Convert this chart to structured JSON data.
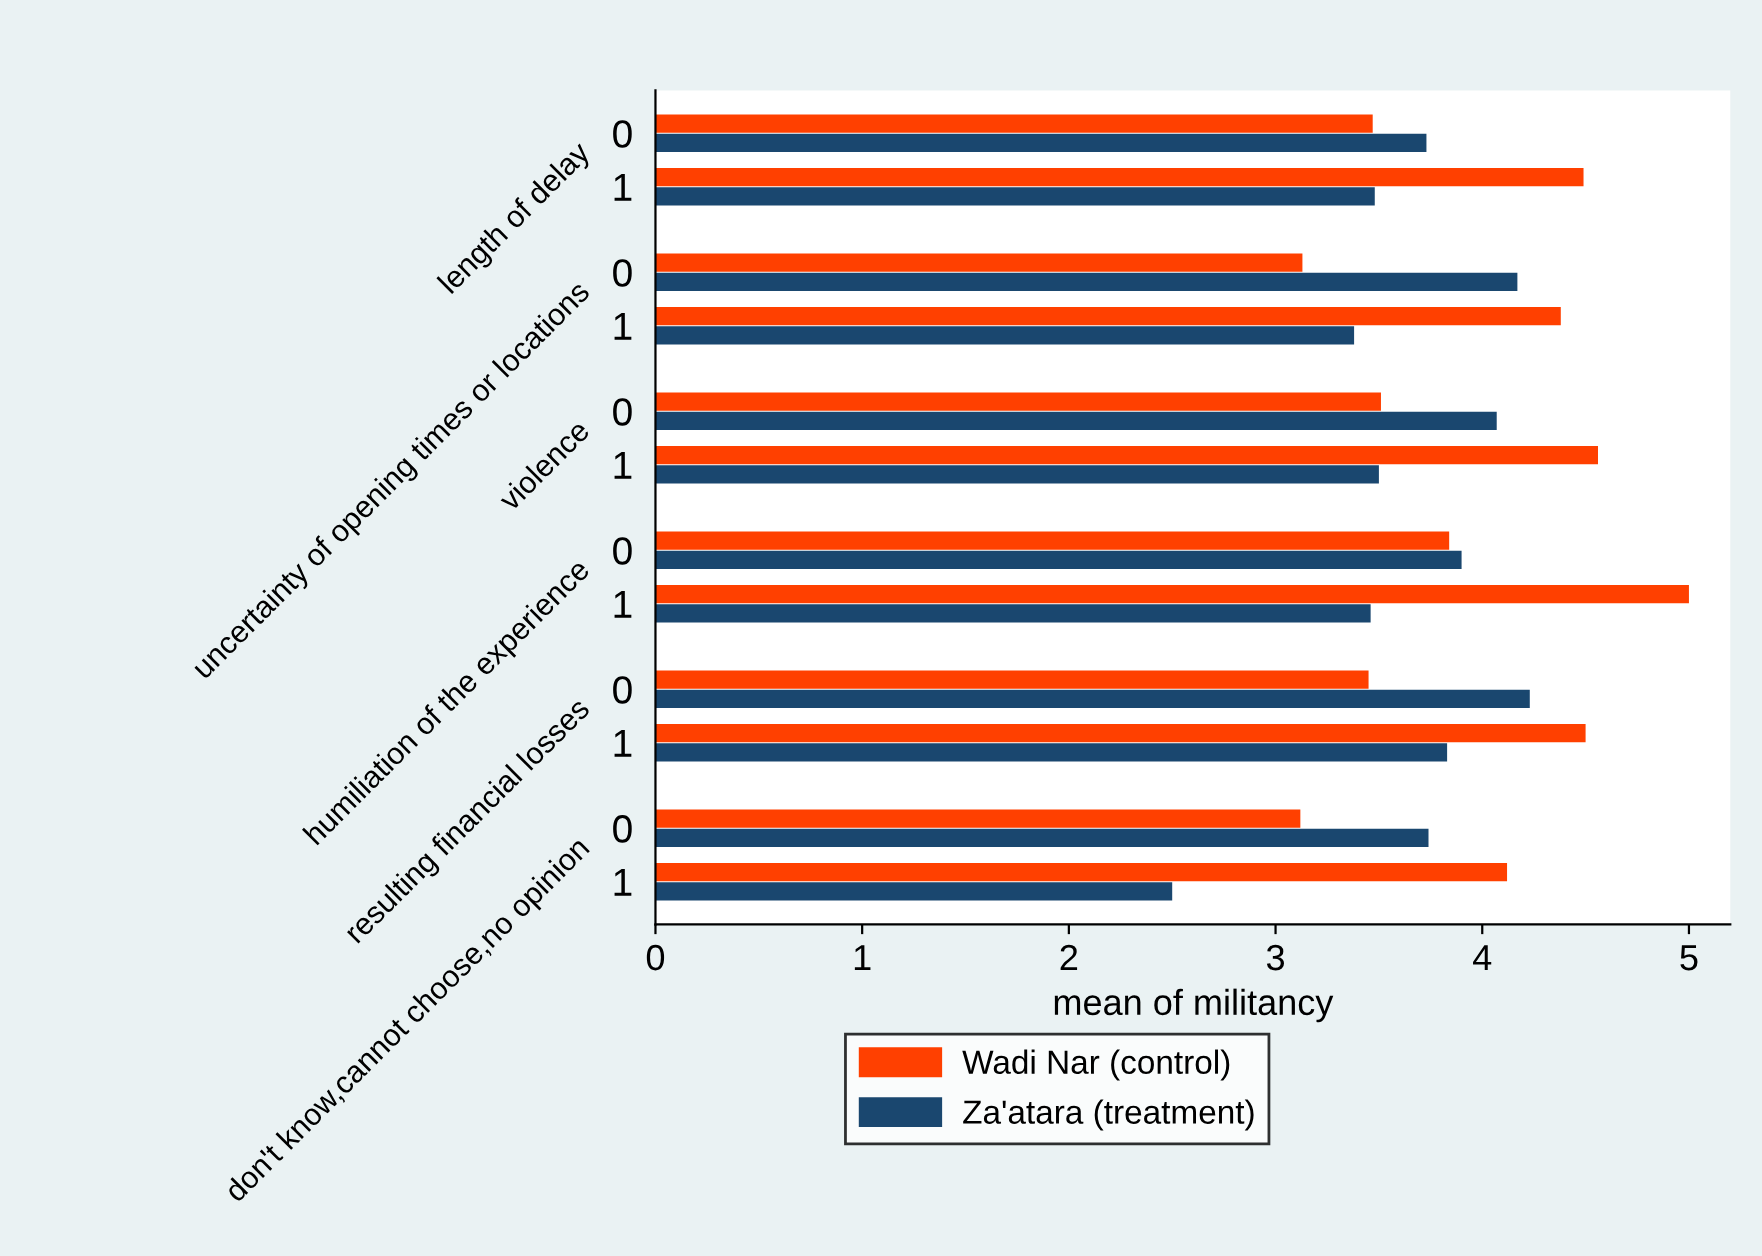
{
  "chart_data": {
    "type": "bar",
    "orientation": "horizontal",
    "xlabel": "mean of militancy",
    "categories": [
      "0",
      "1",
      "0",
      "1",
      "0",
      "1",
      "0",
      "1",
      "0",
      "1",
      "0",
      "1"
    ],
    "annotations": [
      "length of delay",
      "uncertainty of opening times or locations",
      "violence",
      "humiliation of the experience",
      "resulting financial losses",
      "don't know,cannot choose,no opinion"
    ],
    "series": [
      {
        "name": "Wadi Nar (control)",
        "color": "#ff4000",
        "values": [
          3.47,
          4.49,
          3.13,
          4.38,
          3.51,
          4.56,
          3.84,
          5.0,
          3.45,
          4.5,
          3.12,
          4.12
        ]
      },
      {
        "name": "Za'atara (treatment)",
        "color": "#1a476f",
        "values": [
          3.73,
          3.48,
          4.17,
          3.38,
          4.07,
          3.5,
          3.9,
          3.46,
          4.23,
          3.83,
          3.74,
          2.5
        ]
      }
    ],
    "xlim": [
      0,
      5.2
    ],
    "xticks": [
      0,
      1,
      2,
      3,
      4,
      5
    ],
    "grid": false,
    "legend": "bottom"
  }
}
